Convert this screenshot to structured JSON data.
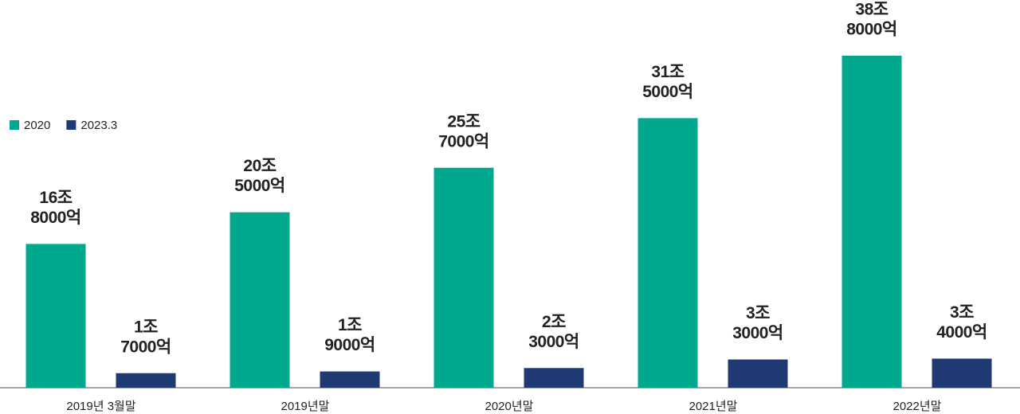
{
  "chart_data": {
    "type": "bar",
    "categories": [
      "2019년 3월말",
      "2019년말",
      "2020년말",
      "2021년말",
      "2022년말"
    ],
    "series": [
      {
        "name": "2020",
        "color": "#00a88e",
        "values": [
          16.8,
          20.5,
          25.7,
          31.5,
          38.8
        ],
        "value_labels": [
          [
            "16조",
            "8000억"
          ],
          [
            "20조",
            "5000억"
          ],
          [
            "25조",
            "7000억"
          ],
          [
            "31조",
            "5000억"
          ],
          [
            "38조",
            "8000억"
          ]
        ]
      },
      {
        "name": "2023.3",
        "color": "#1f3a73",
        "values": [
          1.7,
          1.9,
          2.3,
          3.3,
          3.4
        ],
        "value_labels": [
          [
            "1조",
            "7000억"
          ],
          [
            "1조",
            "9000억"
          ],
          [
            "2조",
            "3000억"
          ],
          [
            "3조",
            "3000억"
          ],
          [
            "3조",
            "4000억"
          ]
        ]
      }
    ],
    "ylim": [
      0,
      40
    ],
    "grid": false,
    "legend": "left"
  }
}
